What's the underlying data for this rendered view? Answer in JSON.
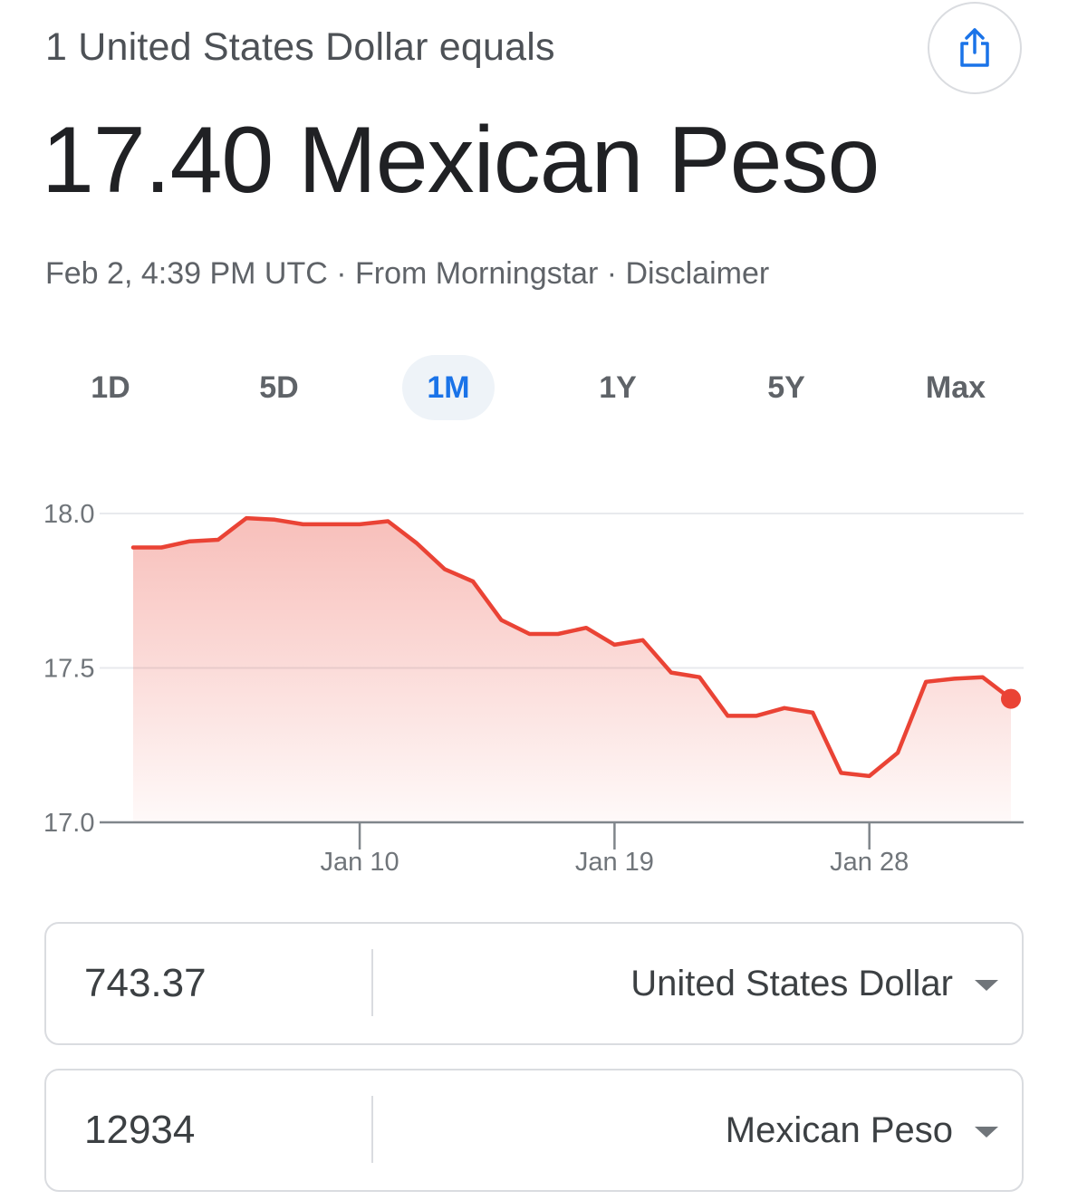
{
  "header": {
    "subtitle": "1 United States Dollar equals",
    "result": "17.40 Mexican Peso",
    "share_icon": "share-icon"
  },
  "meta": {
    "timestamp": "Feb 2, 4:39 PM UTC",
    "sep1": " · ",
    "source": "From Morningstar",
    "sep2": " · ",
    "disclaimer": "Disclaimer"
  },
  "tabs": [
    {
      "label": "1D",
      "active": false
    },
    {
      "label": "5D",
      "active": false
    },
    {
      "label": "1M",
      "active": true
    },
    {
      "label": "1Y",
      "active": false
    },
    {
      "label": "5Y",
      "active": false
    },
    {
      "label": "Max",
      "active": false
    }
  ],
  "chart_data": {
    "type": "area",
    "line_color": "#ea4335",
    "grid": true,
    "ylim": [
      17.0,
      18.0
    ],
    "yticks": [
      "18.0",
      "17.5",
      "17.0"
    ],
    "xticks": [
      "Jan 10",
      "Jan 19",
      "Jan 28"
    ],
    "series": [
      {
        "values": [
          17.89,
          17.89,
          17.91,
          17.915,
          17.985,
          17.98,
          17.965,
          17.965,
          17.965,
          17.975,
          17.905,
          17.82,
          17.78,
          17.655,
          17.61,
          17.61,
          17.63,
          17.575,
          17.59,
          17.485,
          17.47,
          17.345,
          17.345,
          17.37,
          17.355,
          17.16,
          17.15,
          17.225,
          17.455,
          17.465,
          17.47,
          17.4
        ]
      }
    ]
  },
  "converter": {
    "from": {
      "value": "743.37",
      "currency": "United States Dollar"
    },
    "to": {
      "value": "12934",
      "currency": "Mexican Peso"
    }
  }
}
